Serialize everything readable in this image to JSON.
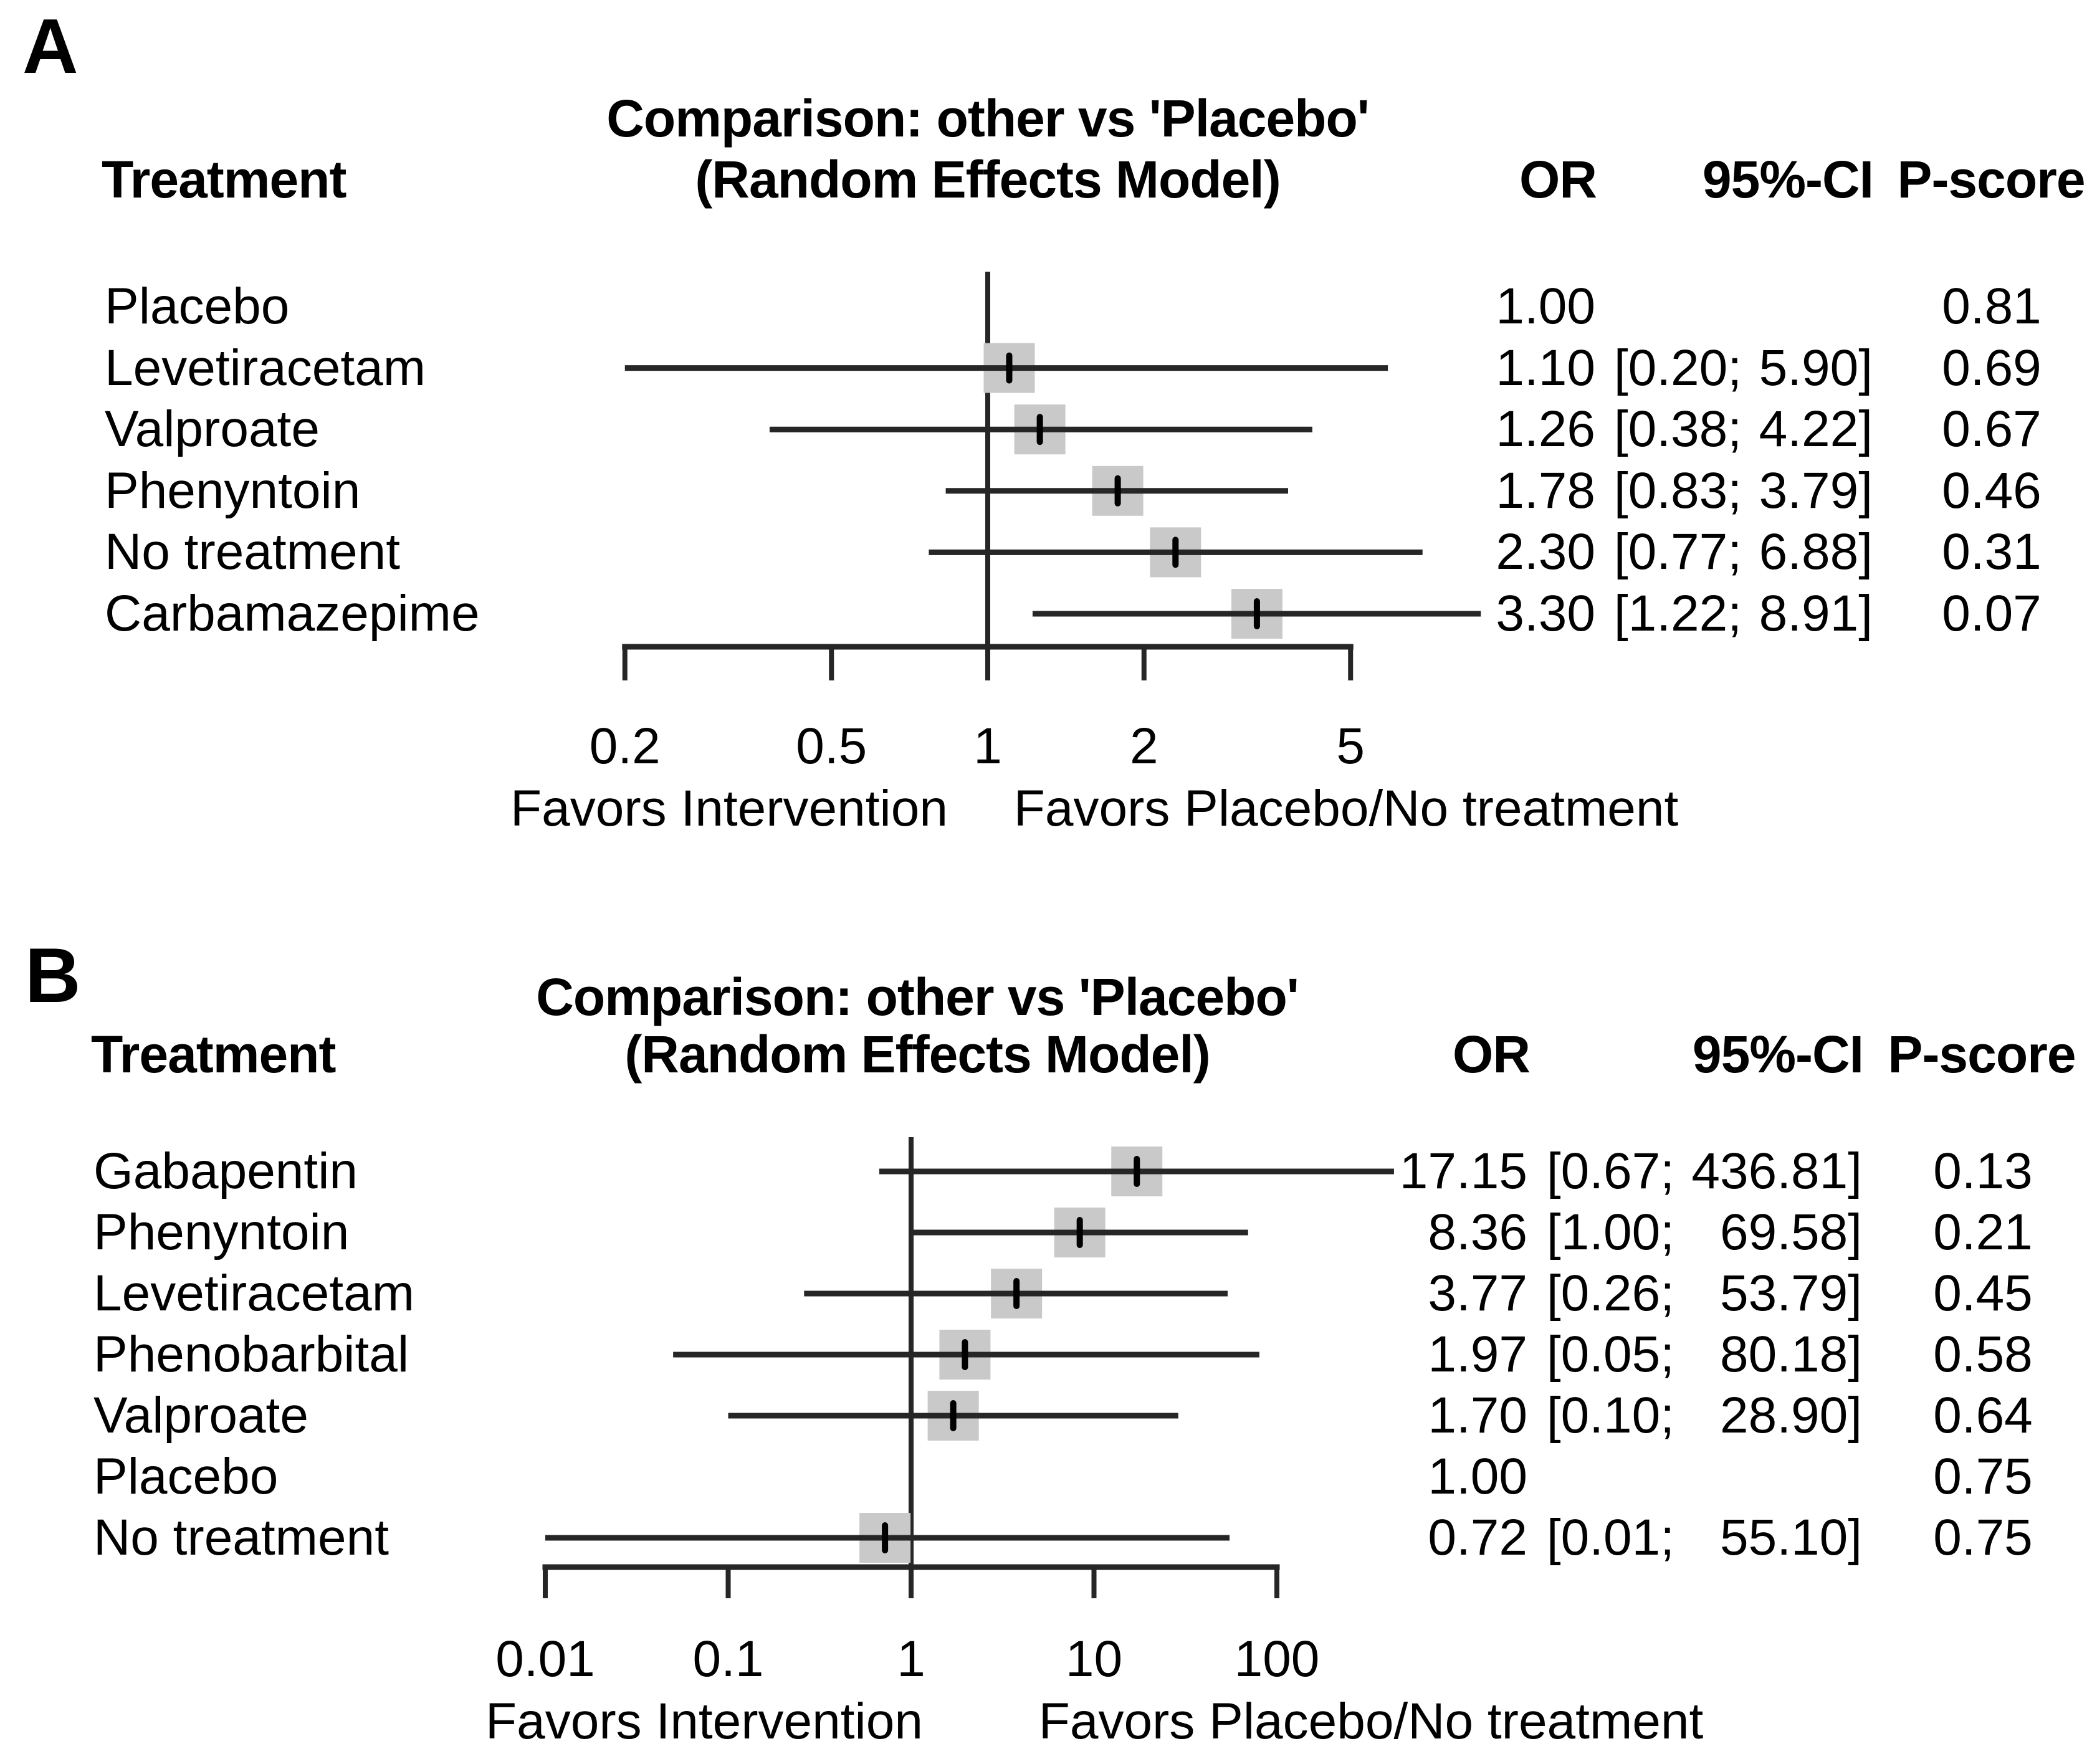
{
  "figure": {
    "background": "#ffffff",
    "text_color": "#000000",
    "box_color": "#c9c9c9",
    "line_color": "#262626",
    "marker_color": "#000000"
  },
  "chart_data": [
    {
      "type": "forest",
      "panel_label": "A",
      "title": "Comparison: other vs 'Placebo'",
      "subtitle": "(Random Effects Model)",
      "columns": {
        "treatment": "Treatment",
        "or": "OR",
        "ci": "95%-CI",
        "pscore": "P-score"
      },
      "x_axis": {
        "scale": "log",
        "ticks": [
          "0.2",
          "0.5",
          "1",
          "2",
          "5"
        ],
        "ref_line": "1",
        "left_label": "Favors Intervention",
        "right_label": "Favors Placebo/No treatment"
      },
      "rows": [
        {
          "treatment": "Placebo",
          "or": "1.00",
          "ci_low": "",
          "ci_high": "",
          "p_score": "0.81"
        },
        {
          "treatment": "Levetiracetam",
          "or": "1.10",
          "ci_low": "0.20",
          "ci_high": "5.90",
          "p_score": "0.69"
        },
        {
          "treatment": "Valproate",
          "or": "1.26",
          "ci_low": "0.38",
          "ci_high": "4.22",
          "p_score": "0.67"
        },
        {
          "treatment": "Phenyntoin",
          "or": "1.78",
          "ci_low": "0.83",
          "ci_high": "3.79",
          "p_score": "0.46"
        },
        {
          "treatment": "No treatment",
          "or": "2.30",
          "ci_low": "0.77",
          "ci_high": "6.88",
          "p_score": "0.31"
        },
        {
          "treatment": "Carbamazepime",
          "or": "3.30",
          "ci_low": "1.22",
          "ci_high": "8.91",
          "p_score": "0.07"
        }
      ]
    },
    {
      "type": "forest",
      "panel_label": "B",
      "title": "Comparison: other vs 'Placebo'",
      "subtitle": "(Random Effects Model)",
      "columns": {
        "treatment": "Treatment",
        "or": "OR",
        "ci": "95%-CI",
        "pscore": "P-score"
      },
      "x_axis": {
        "scale": "log",
        "ticks": [
          "0.01",
          "0.1",
          "1",
          "10",
          "100"
        ],
        "ref_line": "1",
        "left_label": "Favors Intervention",
        "right_label": "Favors Placebo/No treatment"
      },
      "rows": [
        {
          "treatment": "Gabapentin",
          "or": "17.15",
          "ci_low": "0.67",
          "ci_high": "436.81",
          "p_score": "0.13"
        },
        {
          "treatment": "Phenyntoin",
          "or": "8.36",
          "ci_low": "1.00",
          "ci_high": "69.58",
          "p_score": "0.21"
        },
        {
          "treatment": "Levetiracetam",
          "or": "3.77",
          "ci_low": "0.26",
          "ci_high": "53.79",
          "p_score": "0.45"
        },
        {
          "treatment": "Phenobarbital",
          "or": "1.97",
          "ci_low": "0.05",
          "ci_high": "80.18",
          "p_score": "0.58"
        },
        {
          "treatment": "Valproate",
          "or": "1.70",
          "ci_low": "0.10",
          "ci_high": "28.90",
          "p_score": "0.64"
        },
        {
          "treatment": "Placebo",
          "or": "1.00",
          "ci_low": "",
          "ci_high": "",
          "p_score": "0.75"
        },
        {
          "treatment": "No treatment",
          "or": "0.72",
          "ci_low": "0.01",
          "ci_high": "55.10",
          "p_score": "0.75"
        }
      ]
    }
  ]
}
